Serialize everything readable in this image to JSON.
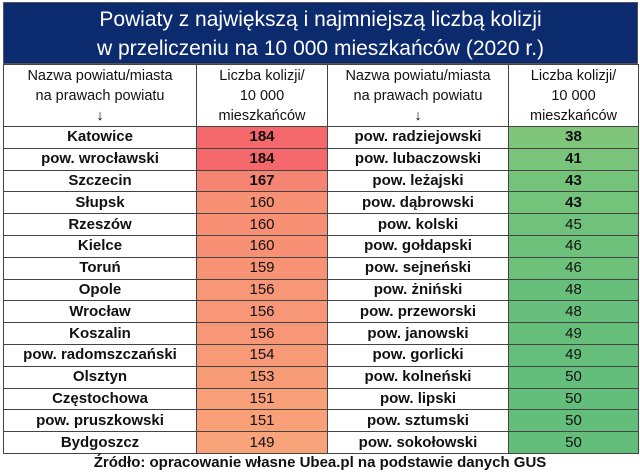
{
  "title_line1": "Powiaty z największą i najmniejszą liczbą kolizji",
  "title_line2": "w przeliczeniu na 10 000 mieszkańców (2020 r.)",
  "headers": {
    "name_line1": "Nazwa powiatu/miasta",
    "name_line2": "na prawach powiatu",
    "arrow": "↓",
    "value_line1": "Liczba kolizji/",
    "value_line2": "10 000",
    "value_line3": "mieszkańców"
  },
  "colors": {
    "header_bg": "#0c2a6e",
    "red_max": "#f4676a",
    "red_min": "#f9a37a",
    "green_max": "#63be7b",
    "green_min": "#80c67a"
  },
  "highest": [
    {
      "name": "Katowice",
      "value": "184",
      "bold": true
    },
    {
      "name": "pow. wrocławski",
      "value": "184",
      "bold": true
    },
    {
      "name": "Szczecin",
      "value": "167",
      "bold": true
    },
    {
      "name": "Słupsk",
      "value": "160"
    },
    {
      "name": "Rzeszów",
      "value": "160"
    },
    {
      "name": "Kielce",
      "value": "160"
    },
    {
      "name": "Toruń",
      "value": "159"
    },
    {
      "name": "Opole",
      "value": "156"
    },
    {
      "name": "Wrocław",
      "value": "156"
    },
    {
      "name": "Koszalin",
      "value": "156"
    },
    {
      "name": "pow. radomszczański",
      "value": "154"
    },
    {
      "name": "Olsztyn",
      "value": "153"
    },
    {
      "name": "Częstochowa",
      "value": "151"
    },
    {
      "name": "pow. pruszkowski",
      "value": "151"
    },
    {
      "name": "Bydgoszcz",
      "value": "149"
    }
  ],
  "lowest": [
    {
      "name": "pow. radziejowski",
      "value": "38",
      "bold": true
    },
    {
      "name": "pow. lubaczowski",
      "value": "41",
      "bold": true
    },
    {
      "name": "pow. leżajski",
      "value": "43",
      "bold": true
    },
    {
      "name": "pow. dąbrowski",
      "value": "43",
      "bold": true
    },
    {
      "name": "pow. kolski",
      "value": "45"
    },
    {
      "name": "pow. gołdapski",
      "value": "46"
    },
    {
      "name": "pow. sejneński",
      "value": "46"
    },
    {
      "name": "pow. żniński",
      "value": "48"
    },
    {
      "name": "pow. przeworski",
      "value": "48"
    },
    {
      "name": "pow. janowski",
      "value": "49"
    },
    {
      "name": "pow. gorlicki",
      "value": "49"
    },
    {
      "name": "pow. kolneński",
      "value": "50"
    },
    {
      "name": "pow. lipski",
      "value": "50"
    },
    {
      "name": "pow. sztumski",
      "value": "50"
    },
    {
      "name": "pow. sokołowski",
      "value": "50"
    }
  ],
  "source": "Źródło: opracowanie własne Ubea.pl na podstawie danych GUS"
}
